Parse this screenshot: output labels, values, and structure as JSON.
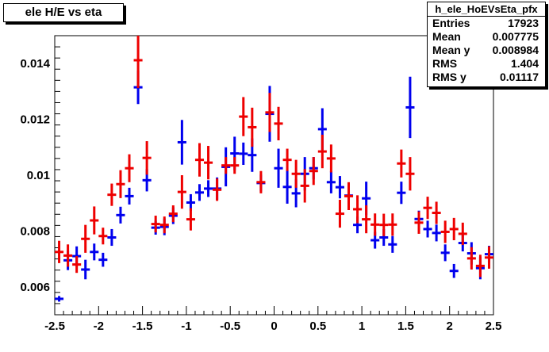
{
  "title": "ele H/E vs eta",
  "stats": {
    "name": "h_ele_HoEVsEta_pfx",
    "rows": [
      {
        "label": "Entries",
        "value": "17923"
      },
      {
        "label": "Mean",
        "value": "0.007775"
      },
      {
        "label": "Mean y",
        "value": "0.008984"
      },
      {
        "label": "RMS",
        "value": "1.404"
      },
      {
        "label": "RMS y",
        "value": "0.01117"
      }
    ]
  },
  "chart_data": {
    "type": "scatter",
    "title": "ele H/E vs eta",
    "xlabel": "",
    "ylabel": "",
    "xlim": [
      -2.5,
      2.5
    ],
    "ylim": [
      0.005,
      0.015
    ],
    "x_ticks": [
      "-2.5",
      "-2",
      "-1.5",
      "-1",
      "-0.5",
      "0",
      "0.5",
      "1",
      "1.5",
      "2",
      "2.5"
    ],
    "y_ticks": [
      "0.006",
      "0.008",
      "0.01",
      "0.012",
      "0.014"
    ],
    "series": [
      {
        "color": "#0000ee",
        "x": [
          -2.45,
          -2.35,
          -2.25,
          -2.15,
          -2.05,
          -1.95,
          -1.85,
          -1.75,
          -1.65,
          -1.55,
          -1.45,
          -1.35,
          -1.25,
          -1.15,
          -1.05,
          -0.95,
          -0.85,
          -0.75,
          -0.65,
          -0.55,
          -0.45,
          -0.35,
          -0.25,
          -0.15,
          -0.05,
          0.05,
          0.15,
          0.25,
          0.35,
          0.45,
          0.55,
          0.65,
          0.75,
          0.85,
          0.95,
          1.05,
          1.15,
          1.25,
          1.35,
          1.45,
          1.55,
          1.65,
          1.75,
          1.85,
          1.95,
          2.05,
          2.15,
          2.25,
          2.35,
          2.45
        ],
        "y": [
          0.00557,
          0.00695,
          0.0071,
          0.00662,
          0.00725,
          0.00697,
          0.00777,
          0.00857,
          0.00925,
          0.01315,
          0.00982,
          0.00812,
          0.00815,
          0.00855,
          0.01118,
          0.00902,
          0.00938,
          0.00952,
          0.00952,
          0.0103,
          0.01078,
          0.01077,
          0.01072,
          0.00972,
          0.0122,
          0.01025,
          0.00958,
          0.00935,
          0.01005,
          0.01025,
          0.01165,
          0.00975,
          0.00957,
          0.00927,
          0.00822,
          0.00917,
          0.00767,
          0.00777,
          0.00752,
          0.00937,
          0.01243,
          0.00843,
          0.00807,
          0.00793,
          0.00722,
          0.00657,
          0.00757,
          0.0072,
          0.00667,
          0.00717
        ],
        "err": [
          0.0001,
          0.00035,
          0.00035,
          0.00035,
          0.0003,
          0.00025,
          0.0003,
          0.0003,
          0.0003,
          0.0006,
          0.0004,
          0.00025,
          0.0003,
          0.0003,
          0.0008,
          0.0003,
          0.0003,
          0.0003,
          0.0004,
          0.0007,
          0.0006,
          0.0004,
          0.0006,
          0.0003,
          0.001,
          0.0007,
          0.0006,
          0.0005,
          0.0006,
          0.0004,
          0.00075,
          0.0004,
          0.0004,
          0.0003,
          0.0003,
          0.0006,
          0.0003,
          0.0003,
          0.0003,
          0.0004,
          0.0011,
          0.0003,
          0.0003,
          0.0003,
          0.0003,
          0.00025,
          0.0003,
          0.0004,
          0.0004,
          0.0003
        ]
      },
      {
        "color": "#ee0000",
        "x": [
          -2.45,
          -2.35,
          -2.25,
          -2.15,
          -2.05,
          -1.95,
          -1.85,
          -1.75,
          -1.65,
          -1.55,
          -1.45,
          -1.35,
          -1.25,
          -1.15,
          -1.05,
          -0.95,
          -0.85,
          -0.75,
          -0.65,
          -0.55,
          -0.45,
          -0.35,
          -0.25,
          -0.15,
          -0.05,
          0.05,
          0.15,
          0.25,
          0.35,
          0.45,
          0.55,
          0.65,
          0.75,
          0.85,
          0.95,
          1.05,
          1.15,
          1.25,
          1.35,
          1.45,
          1.55,
          1.65,
          1.75,
          1.85,
          1.95,
          2.05,
          2.15,
          2.25,
          2.35,
          2.45
        ],
        "y": [
          0.00725,
          0.00712,
          0.0068,
          0.00772,
          0.00838,
          0.00782,
          0.0093,
          0.00968,
          0.01025,
          0.01412,
          0.01062,
          0.00825,
          0.00822,
          0.00862,
          0.0094,
          0.00842,
          0.01055,
          0.01045,
          0.00948,
          0.01035,
          0.01035,
          0.0121,
          0.01172,
          0.00975,
          0.01225,
          0.01185,
          0.01055,
          0.01005,
          0.00962,
          0.01015,
          0.01085,
          0.0106,
          0.00862,
          0.00925,
          0.00878,
          0.00842,
          0.00823,
          0.00822,
          0.00823,
          0.01042,
          0.01005,
          0.0083,
          0.00883,
          0.00865,
          0.00797,
          0.00807,
          0.0079,
          0.00702,
          0.00675,
          0.00705
        ],
        "err": [
          0.0004,
          0.0004,
          0.0003,
          0.0005,
          0.0005,
          0.0003,
          0.0004,
          0.0005,
          0.0005,
          0.001,
          0.0006,
          0.0003,
          0.0003,
          0.0003,
          0.0006,
          0.0004,
          0.0006,
          0.0006,
          0.0004,
          0.0003,
          0.0003,
          0.0007,
          0.0007,
          0.0004,
          0.0007,
          0.0006,
          0.0004,
          0.0005,
          0.0006,
          0.0005,
          0.0006,
          0.0005,
          0.0005,
          0.0005,
          0.0005,
          0.0005,
          0.0004,
          0.0004,
          0.0004,
          0.0005,
          0.0006,
          0.0004,
          0.0004,
          0.0004,
          0.0004,
          0.0004,
          0.0004,
          0.0004,
          0.0004,
          0.0004
        ]
      }
    ]
  }
}
